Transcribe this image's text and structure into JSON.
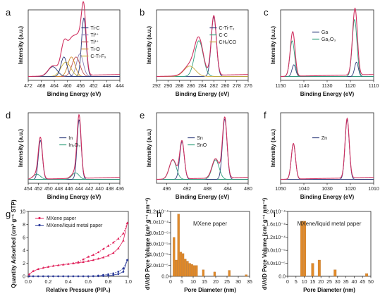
{
  "chart_data": [
    {
      "panel": "a",
      "type": "line",
      "xlabel": "Binding Energy (eV)",
      "ylabel": "Intensity (a.u.)",
      "xlim": [
        472,
        444
      ],
      "xticks": [
        472,
        468,
        464,
        460,
        456,
        452,
        448,
        444
      ],
      "legend": [
        "Ti-C",
        "Ti²⁺",
        "Ti³⁺",
        "Ti-O",
        "C-Ti-Fₓ"
      ],
      "colors": [
        "#2b3a7a",
        "#8a7fb8",
        "#c0504d",
        "#d08a2a",
        "#c9b23a"
      ],
      "peaks": [
        {
          "name": "Ti-C",
          "center": 455.0,
          "height": 0.9,
          "width": 0.7
        },
        {
          "name": "Ti²⁺",
          "center": 456.2,
          "height": 0.35,
          "width": 1.0
        },
        {
          "name": "Ti³⁺",
          "center": 457.4,
          "height": 0.3,
          "width": 1.2
        },
        {
          "name": "Ti-O",
          "center": 458.8,
          "height": 0.3,
          "width": 1.1
        },
        {
          "name": "C-Ti-Fₓ",
          "center": 460.5,
          "height": 0.22,
          "width": 1.5
        },
        {
          "name": "Ti-C 2p1/2",
          "center": 461.1,
          "height": 0.3,
          "width": 0.9
        },
        {
          "name": "Ti-O 2p1/2",
          "center": 464.5,
          "height": 0.15,
          "width": 1.4
        }
      ]
    },
    {
      "panel": "b",
      "type": "line",
      "xlabel": "Binding Energy (eV)",
      "ylabel": "Intensity (a.u.)",
      "xlim": [
        292,
        276
      ],
      "xticks": [
        292,
        290,
        288,
        286,
        284,
        282,
        280,
        278,
        276
      ],
      "legend": [
        "C-Ti-Tₓ",
        "C-C",
        "CHₓ/CO"
      ],
      "colors": [
        "#2b3a7a",
        "#2e9e7a",
        "#c9a83a"
      ],
      "peaks": [
        {
          "name": "C-Ti-Tₓ",
          "center": 282.0,
          "height": 0.92,
          "width": 0.45
        },
        {
          "name": "C-C",
          "center": 284.6,
          "height": 0.55,
          "width": 0.75
        },
        {
          "name": "CHₓ/CO",
          "center": 286.2,
          "height": 0.16,
          "width": 1.0
        }
      ]
    },
    {
      "panel": "c",
      "type": "line",
      "xlabel": "Binding Energy (eV)",
      "ylabel": "Intensity (a.u.)",
      "xlim": [
        1150,
        1110
      ],
      "xticks": [
        1150,
        1140,
        1130,
        1120,
        1110
      ],
      "legend": [
        "Ga",
        "Ga₂O₃"
      ],
      "colors": [
        "#2b3a7a",
        "#2e9e7a"
      ],
      "peaks": [
        {
          "name": "Ga",
          "center": 1144.3,
          "height": 0.18,
          "width": 0.8
        },
        {
          "name": "Ga₂O₃",
          "center": 1145.0,
          "height": 0.55,
          "width": 1.0
        },
        {
          "name": "Ga",
          "center": 1117.4,
          "height": 0.22,
          "width": 0.8
        },
        {
          "name": "Ga₂O₃",
          "center": 1118.2,
          "height": 0.88,
          "width": 1.0
        }
      ]
    },
    {
      "panel": "d",
      "type": "line",
      "xlabel": "Binding Energy (eV)",
      "ylabel": "Intensity (a.u.)",
      "xlim": [
        454,
        436
      ],
      "xticks": [
        454,
        452,
        450,
        448,
        446,
        444,
        442,
        440,
        438,
        436
      ],
      "legend": [
        "In",
        "In₂O₃"
      ],
      "colors": [
        "#2b3a7a",
        "#2e9e7a"
      ],
      "peaks": [
        {
          "name": "In",
          "center": 451.6,
          "height": 0.6,
          "width": 0.4
        },
        {
          "name": "In₂O₃",
          "center": 452.3,
          "height": 0.08,
          "width": 0.7
        },
        {
          "name": "In",
          "center": 444.0,
          "height": 0.92,
          "width": 0.4
        },
        {
          "name": "In₂O₃",
          "center": 444.7,
          "height": 0.1,
          "width": 0.7
        }
      ]
    },
    {
      "panel": "e",
      "type": "line",
      "xlabel": "Binding Energy (eV)",
      "ylabel": "Intensity (a.u.)",
      "xlim": [
        498,
        480
      ],
      "xticks": [
        496,
        492,
        488,
        484,
        480
      ],
      "legend": [
        "Sn",
        "SnO"
      ],
      "colors": [
        "#2b3a7a",
        "#2e9e7a"
      ],
      "peaks": [
        {
          "name": "Sn",
          "center": 493.0,
          "height": 0.58,
          "width": 0.45
        },
        {
          "name": "SnO",
          "center": 494.8,
          "height": 0.3,
          "width": 0.7
        },
        {
          "name": "Sn",
          "center": 484.6,
          "height": 0.93,
          "width": 0.45
        },
        {
          "name": "SnO",
          "center": 486.4,
          "height": 0.3,
          "width": 0.7
        }
      ]
    },
    {
      "panel": "f",
      "type": "line",
      "xlabel": "Binding Energy (eV)",
      "ylabel": "Intensity (a.u.)",
      "xlim": [
        1050,
        1010
      ],
      "xticks": [
        1050,
        1040,
        1030,
        1020,
        1010
      ],
      "legend": [
        "Zn"
      ],
      "colors": [
        "#2b3a7a"
      ],
      "peaks": [
        {
          "name": "Zn",
          "center": 1044.5,
          "height": 0.55,
          "width": 0.9
        },
        {
          "name": "Zn",
          "center": 1021.4,
          "height": 0.92,
          "width": 0.9
        }
      ]
    },
    {
      "panel": "g",
      "type": "line",
      "xlabel": "Relative Pressure (P/P₀)",
      "ylabel": "Quantity Adsorbed (cm³ g⁻¹ STP)",
      "xlim": [
        0.0,
        1.0
      ],
      "ylim": [
        0,
        10
      ],
      "xticks": [
        0.0,
        0.2,
        0.4,
        0.6,
        0.8,
        1.0
      ],
      "yticks": [
        0,
        2,
        4,
        6,
        8,
        10
      ],
      "series": [
        {
          "name": "MXene paper",
          "color": "#e0205a",
          "adsorption": {
            "x": [
              0.01,
              0.05,
              0.1,
              0.15,
              0.2,
              0.25,
              0.3,
              0.35,
              0.4,
              0.45,
              0.5,
              0.55,
              0.6,
              0.65,
              0.7,
              0.75,
              0.8,
              0.85,
              0.9,
              0.95,
              0.99
            ],
            "y": [
              0.3,
              0.8,
              1.1,
              1.3,
              1.45,
              1.6,
              1.7,
              1.8,
              1.9,
              2.0,
              2.1,
              2.2,
              2.35,
              2.5,
              2.7,
              2.9,
              3.2,
              3.6,
              4.3,
              5.5,
              8.2
            ]
          },
          "desorption": {
            "x": [
              0.99,
              0.95,
              0.9,
              0.85,
              0.8,
              0.75,
              0.7,
              0.65,
              0.6,
              0.55,
              0.5,
              0.45
            ],
            "y": [
              8.2,
              6.6,
              5.8,
              5.2,
              4.7,
              4.2,
              3.7,
              3.3,
              3.0,
              2.6,
              2.2,
              2.0
            ]
          }
        },
        {
          "name": "MXene/liquid metal paper",
          "color": "#2a3a9a",
          "adsorption": {
            "x": [
              0.01,
              0.05,
              0.1,
              0.15,
              0.2,
              0.25,
              0.3,
              0.35,
              0.4,
              0.45,
              0.5,
              0.55,
              0.6,
              0.65,
              0.7,
              0.75,
              0.8,
              0.85,
              0.9,
              0.95,
              0.99
            ],
            "y": [
              0.0,
              0.0,
              0.0,
              0.0,
              0.0,
              0.0,
              0.0,
              0.0,
              0.0,
              0.0,
              0.0,
              0.0,
              0.0,
              0.02,
              0.03,
              0.05,
              0.1,
              0.2,
              0.35,
              0.7,
              2.5
            ]
          },
          "desorption": {
            "x": [
              0.99,
              0.95,
              0.9,
              0.85,
              0.8,
              0.75,
              0.7
            ],
            "y": [
              2.5,
              1.2,
              0.7,
              0.45,
              0.3,
              0.2,
              0.1
            ]
          }
        }
      ]
    },
    {
      "panel": "h",
      "type": "bar",
      "title": "MXene paper",
      "xlabel": "Pore Diameter (nm)",
      "ylabel": "dV/dD Pore Volume (cm³ g⁻¹ nm⁻¹)",
      "xlim": [
        0,
        35
      ],
      "ylim": [
        0,
        0.00012
      ],
      "xticks": [
        0,
        5,
        10,
        15,
        20,
        25,
        30,
        35
      ],
      "yticks": [
        0.0,
        2e-05,
        4e-05,
        6e-05,
        8e-05,
        0.0001,
        0.00012
      ],
      "yticklabels": [
        "0.0",
        "2.0x10⁻⁵",
        "4.0x10⁻⁵",
        "6.0x10⁻⁵",
        "8.0x10⁻⁵",
        "1.0x10⁻⁴",
        "1.2x10⁻⁴"
      ],
      "bar_width": 0.9,
      "x": [
        1.5,
        2.5,
        3.5,
        4.5,
        5.5,
        6.5,
        7.5,
        8.5,
        9.5,
        10.5,
        11.5,
        14.5,
        19.5,
        26.0,
        33.5
      ],
      "values": [
        7.2e-05,
        3e-05,
        0.000115,
        4.5e-05,
        4.2e-05,
        3.2e-05,
        2.8e-05,
        2.4e-05,
        2.2e-05,
        2e-05,
        2e-05,
        1.2e-05,
        8e-06,
        1.1e-05,
        3e-06
      ]
    },
    {
      "panel": "i",
      "type": "bar",
      "title": "MXene/liquid metal paper",
      "xlabel": "Pore Diameter (nm)",
      "ylabel": "dV/dD Pore Volume (cm³ g⁻¹ nm⁻¹)",
      "xlim": [
        0,
        50
      ],
      "ylim": [
        0,
        0.0002
      ],
      "xticks": [
        0,
        5,
        10,
        15,
        20,
        25,
        30,
        35,
        40,
        45,
        50
      ],
      "yticks": [
        0.0,
        4e-05,
        8e-05,
        0.00012,
        0.00016,
        0.0002
      ],
      "yticklabels": [
        "0.0",
        "4.0x10⁻⁵",
        "8.0x10⁻⁵",
        "1.2x10⁻⁴",
        "1.6x10⁻⁴",
        "2.0x10⁻⁴"
      ],
      "bar_width": 1.5,
      "x": [
        8.5,
        10.2,
        15.0,
        19.0,
        28.5,
        47.5
      ],
      "values": [
        0.00017,
        0.00017,
        4e-05,
        5e-05,
        2e-05,
        8e-06
      ]
    }
  ]
}
